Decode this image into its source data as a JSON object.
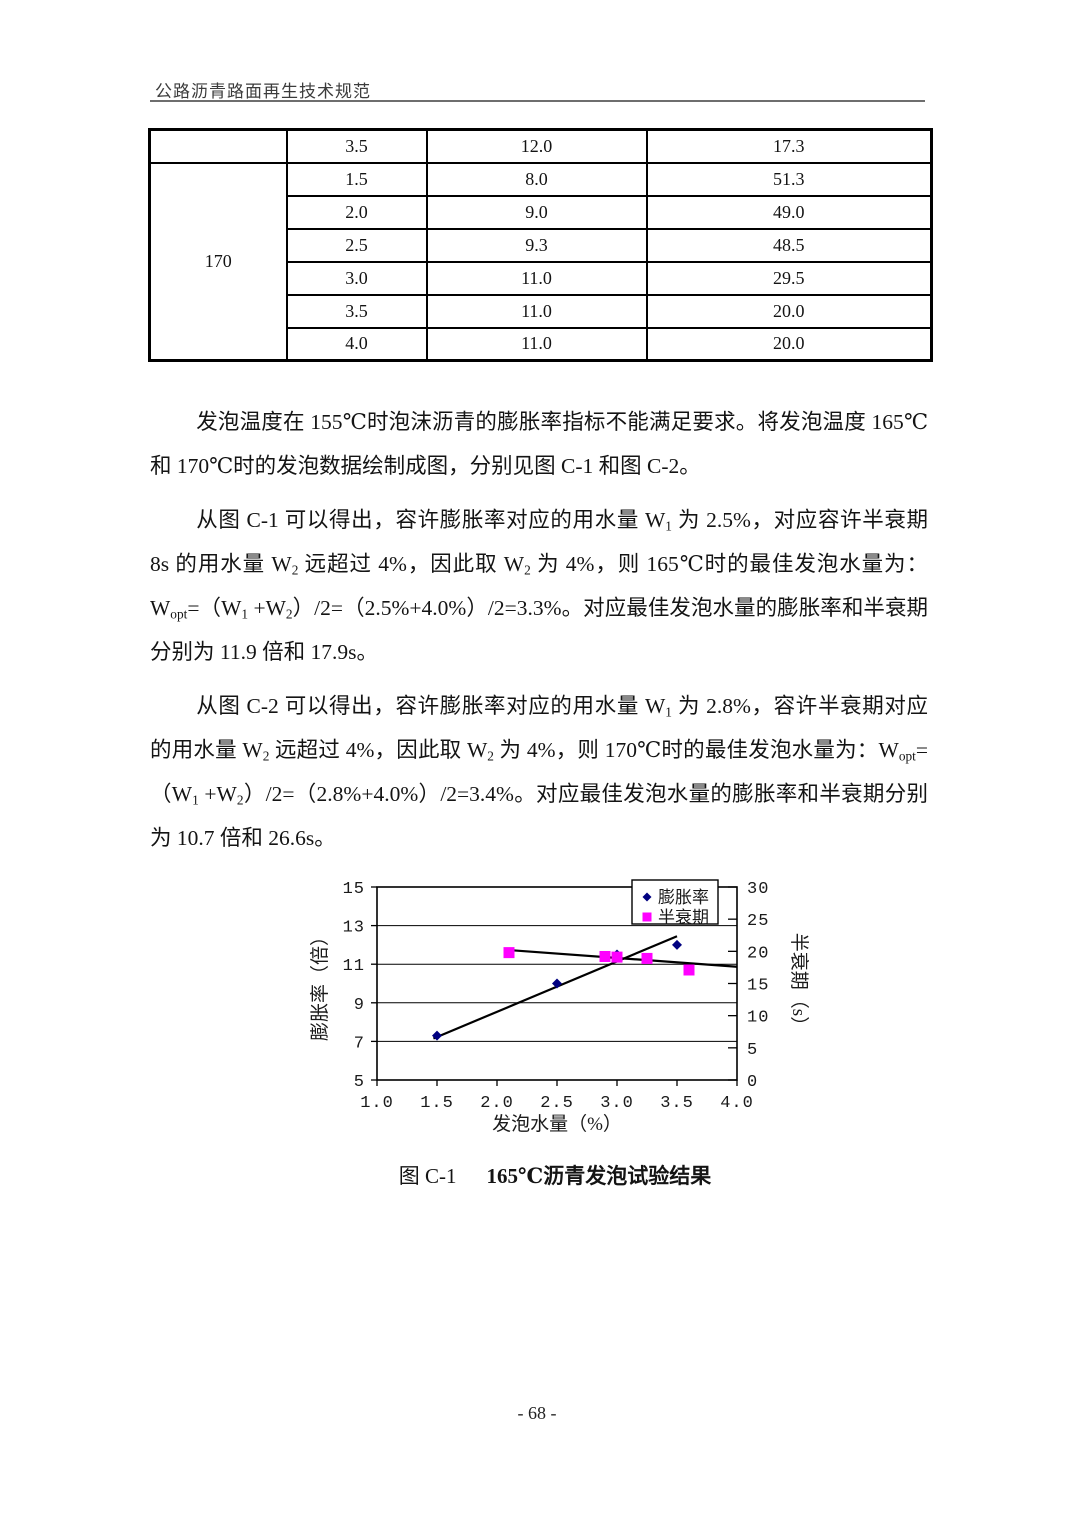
{
  "page": {
    "header_title": "公路沥青路面再生技术规范",
    "page_number": "- 68 -"
  },
  "table": {
    "top_row": [
      "3.5",
      "12.0",
      "17.3"
    ],
    "group_label": "170",
    "group_rows": [
      [
        "1.5",
        "8.0",
        "51.3"
      ],
      [
        "2.0",
        "9.0",
        "49.0"
      ],
      [
        "2.5",
        "9.3",
        "48.5"
      ],
      [
        "3.0",
        "11.0",
        "29.5"
      ],
      [
        "3.5",
        "11.0",
        "20.0"
      ],
      [
        "4.0",
        "11.0",
        "20.0"
      ]
    ]
  },
  "paragraphs": {
    "p1": [
      {
        "text": "发泡温度在 155℃时泡沫沥青的膨胀率指标不能满足要求。将发泡温度 165℃和 170℃时的发泡数据绘制成图，分别见图 C-1 和图 C-2。"
      }
    ],
    "p2": [
      {
        "text": "从图 C-1 可以得出，容许膨胀率对应的用水量 W"
      },
      {
        "text": "1",
        "sub": true
      },
      {
        "text": " 为 2.5%，对应容许半衰期 8s 的用水量 W"
      },
      {
        "text": "2",
        "sub": true
      },
      {
        "text": " 远超过 4%，因此取 W"
      },
      {
        "text": "2",
        "sub": true
      },
      {
        "text": " 为 4%，则 165℃时的最佳发泡水量为：W"
      },
      {
        "text": "opt",
        "sub": true
      },
      {
        "text": "=（W"
      },
      {
        "text": "1",
        "sub": true
      },
      {
        "text": " +W"
      },
      {
        "text": "2",
        "sub": true
      },
      {
        "text": "）/2=（2.5%+4.0%）/2=3.3%。对应最佳发泡水量的膨胀率和半衰期分别为 11.9 倍和 17.9s。"
      }
    ],
    "p3": [
      {
        "text": "从图 C-2 可以得出，容许膨胀率对应的用水量 W"
      },
      {
        "text": "1",
        "sub": true
      },
      {
        "text": " 为 2.8%，容许半衰期对应的用水量 W"
      },
      {
        "text": "2",
        "sub": true
      },
      {
        "text": " 远超过 4%，因此取 W"
      },
      {
        "text": "2",
        "sub": true
      },
      {
        "text": " 为 4%，则 170℃时的最佳发泡水量为：W"
      },
      {
        "text": "opt",
        "sub": true
      },
      {
        "text": "=（W"
      },
      {
        "text": "1",
        "sub": true
      },
      {
        "text": " +W"
      },
      {
        "text": "2",
        "sub": true
      },
      {
        "text": "）/2=（2.8%+4.0%）/2=3.4%。对应最佳发泡水量的膨胀率和半衰期分别为 10.7 倍和 26.6s。"
      }
    ]
  },
  "figure": {
    "caption_label": "图 C-1",
    "caption_title": "165℃沥青发泡试验结果"
  },
  "chart_data": {
    "type": "scatter",
    "title": "165℃沥青发泡试验结果",
    "x_axis": {
      "label": "发泡水量（%）",
      "min": 1.0,
      "max": 4.0,
      "tick_step": 0.5,
      "ticks": [
        "1.0",
        "1.5",
        "2.0",
        "2.5",
        "3.0",
        "3.5",
        "4.0"
      ]
    },
    "left_axis": {
      "label": "膨胀率（倍）",
      "min": 5,
      "max": 15,
      "ticks": [
        5,
        7,
        9,
        11,
        13,
        15
      ]
    },
    "right_axis": {
      "label": "半衰期（s）",
      "min": 0,
      "max": 30,
      "ticks": [
        0,
        5,
        10,
        15,
        20,
        25,
        30
      ]
    },
    "gridlines_left_values": [
      7,
      9,
      11,
      13
    ],
    "grid": true,
    "legend": {
      "position": "top-right",
      "entries": [
        "膨胀率",
        "半衰期"
      ]
    },
    "series": [
      {
        "name": "膨胀率",
        "axis": "left",
        "marker": "diamond",
        "color": "#000080",
        "points": [
          [
            1.5,
            7.3
          ],
          [
            2.5,
            10.0
          ],
          [
            3.0,
            11.5
          ],
          [
            3.5,
            12.0
          ]
        ],
        "trendline": {
          "color": "#000000",
          "from": [
            1.47,
            7.15
          ],
          "to": [
            3.5,
            12.45
          ]
        }
      },
      {
        "name": "半衰期",
        "axis": "right",
        "marker": "square",
        "color": "#FF00FF",
        "points": [
          [
            2.1,
            19.8
          ],
          [
            2.9,
            19.2
          ],
          [
            3.0,
            19.1
          ],
          [
            3.25,
            18.9
          ],
          [
            3.6,
            17.1
          ]
        ],
        "trendline": {
          "color": "#000000",
          "from": [
            2.1,
            20.2
          ],
          "to": [
            4.0,
            17.6
          ]
        }
      }
    ]
  }
}
